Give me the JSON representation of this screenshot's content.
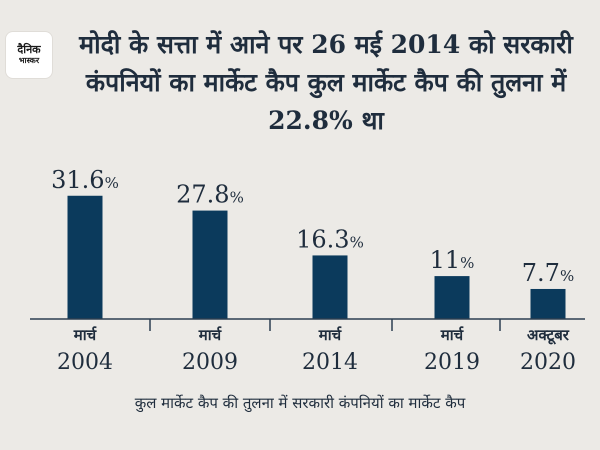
{
  "brand": {
    "logo_line1": "दैनिक",
    "logo_line2": "भास्कर"
  },
  "colors": {
    "bar": "#0b3a5c",
    "text": "#1f2d3d",
    "axis": "#2c3e50",
    "background": "#eceae6"
  },
  "title": "मोदी के सत्ता में आने पर 26 मई 2014 को सरकारी कंपनियों का मार्केट कैप कुल मार्केट कैप की तुलना में 22.8% था",
  "caption": "कुल मार्केट कैप की तुलना में सरकारी कंपनियों का मार्केट कैप",
  "chart_data": {
    "type": "bar",
    "categories": [
      {
        "month": "मार्च",
        "year": "2004"
      },
      {
        "month": "मार्च",
        "year": "2009"
      },
      {
        "month": "मार्च",
        "year": "2014"
      },
      {
        "month": "मार्च",
        "year": "2019"
      },
      {
        "month": "अक्टूबर",
        "year": "2020"
      }
    ],
    "values": [
      31.6,
      27.8,
      16.3,
      11,
      7.7
    ],
    "value_labels": [
      "31.6",
      "27.8",
      "16.3",
      "11",
      "7.7"
    ],
    "unit": "%",
    "ylim": [
      0,
      35
    ],
    "grid": false,
    "legend": "none"
  }
}
